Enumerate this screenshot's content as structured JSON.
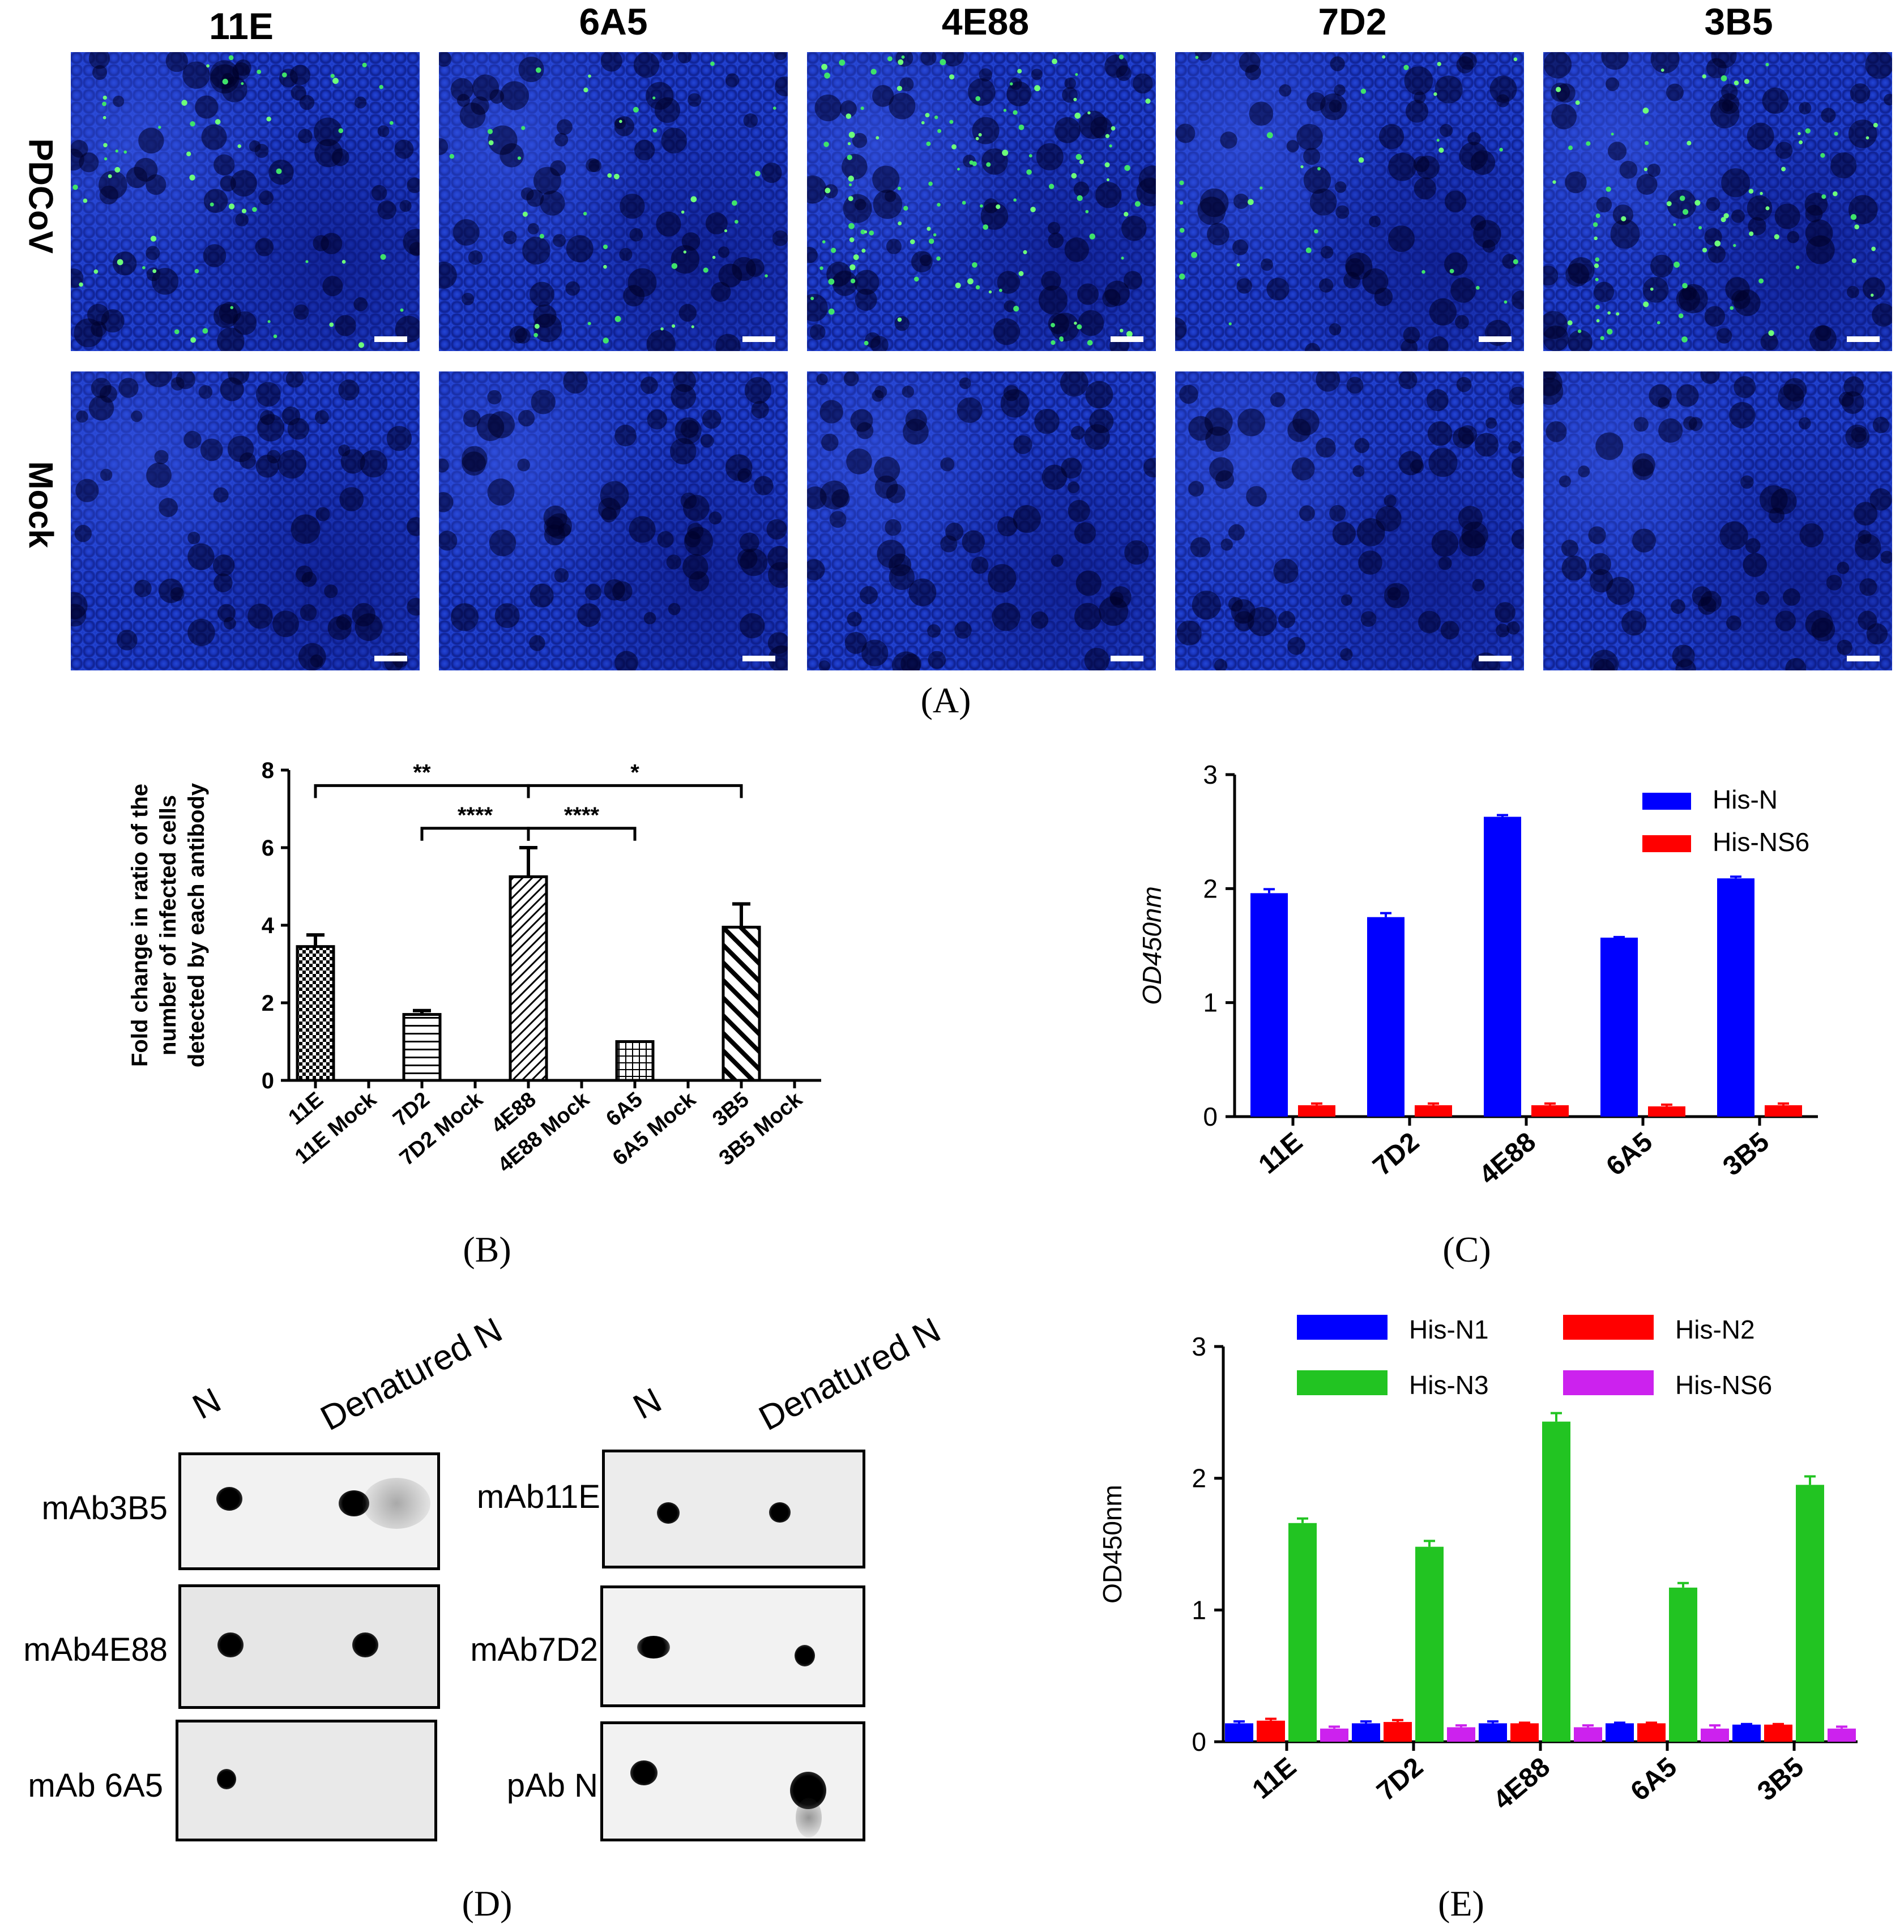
{
  "panel_a": {
    "columns": [
      "11E",
      "6A5",
      "4E88",
      "7D2",
      "3B5"
    ],
    "rows": [
      "PDCoV",
      "Mock"
    ],
    "panel_label": "(A)"
  },
  "panel_labels": {
    "b": "(B)",
    "c": "(C)",
    "d": "(D)",
    "e": "(E)"
  },
  "panel_d": {
    "headers": [
      "N",
      "Denatured N"
    ],
    "left_labels": [
      "mAb3B5",
      "mAb4E88",
      "mAb 6A5"
    ],
    "right_labels": [
      "mAb11E",
      "mAb7D2",
      "pAb N"
    ]
  },
  "chart_data": [
    {
      "id": "B",
      "type": "bar",
      "ylabel": "Fold change in ratio of the number of infected cells detected by each antibody",
      "ylabel_lines": [
        "Fold change in ratio of the",
        "number of infected cells",
        "detected by each antibody"
      ],
      "categories": [
        "11E",
        "11E Mock",
        "7D2",
        "7D2 Mock",
        "4E88",
        "4E88 Mock",
        "6A5",
        "6A5 Mock",
        "3B5",
        "3B5 Mock"
      ],
      "values": [
        3.45,
        0,
        1.7,
        0,
        5.25,
        0,
        1.0,
        0,
        3.95,
        0
      ],
      "errors": [
        0.3,
        0,
        0.1,
        0,
        0.75,
        0,
        0,
        0,
        0.6,
        0
      ],
      "patterns": [
        "checker",
        "none",
        "hlines",
        "none",
        "diag",
        "none",
        "grid",
        "none",
        "diagthick",
        "none"
      ],
      "ylim": [
        0,
        8
      ],
      "yticks": [
        0,
        2,
        4,
        6,
        8
      ],
      "significance": [
        {
          "from": "11E",
          "to": "4E88",
          "label": "**",
          "level": 7.6
        },
        {
          "from": "4E88",
          "to": "3B5",
          "label": "*",
          "level": 7.6
        },
        {
          "from": "7D2",
          "to": "4E88",
          "label": "****",
          "level": 6.5
        },
        {
          "from": "4E88",
          "to": "6A5",
          "label": "****",
          "level": 6.5
        }
      ]
    },
    {
      "id": "C",
      "type": "bar",
      "ylabel": "OD450nm",
      "categories": [
        "11E",
        "7D2",
        "4E88",
        "6A5",
        "3B5"
      ],
      "series": [
        {
          "name": "His-N",
          "color": "#0000ff",
          "values": [
            1.96,
            1.75,
            2.63,
            1.57,
            2.09
          ],
          "errors": [
            0.03,
            0.03,
            0.01,
            0.0,
            0.01
          ]
        },
        {
          "name": "His-NS6",
          "color": "#ff0000",
          "values": [
            0.1,
            0.1,
            0.1,
            0.09,
            0.1
          ],
          "errors": [
            0.01,
            0.01,
            0.01,
            0.01,
            0.01
          ]
        }
      ],
      "ylim": [
        0,
        3
      ],
      "yticks": [
        0,
        1,
        2,
        3
      ],
      "legend": "top-right"
    },
    {
      "id": "E",
      "type": "bar",
      "ylabel": "OD450nm",
      "categories": [
        "11E",
        "7D2",
        "4E88",
        "6A5",
        "3B5"
      ],
      "series": [
        {
          "name": "His-N1",
          "color": "#0000ff",
          "values": [
            0.14,
            0.14,
            0.14,
            0.14,
            0.13
          ],
          "errors": [
            0.01,
            0.01,
            0.01,
            0.0,
            0.0
          ]
        },
        {
          "name": "His-N2",
          "color": "#ff0000",
          "values": [
            0.16,
            0.15,
            0.14,
            0.14,
            0.13
          ],
          "errors": [
            0.01,
            0.01,
            0.0,
            0.0,
            0.0
          ]
        },
        {
          "name": "His-N3",
          "color": "#22c422",
          "values": [
            1.66,
            1.48,
            2.43,
            1.17,
            1.95
          ],
          "errors": [
            0.03,
            0.04,
            0.06,
            0.03,
            0.06
          ]
        },
        {
          "name": "His-NS6",
          "color": "#cc22ee",
          "values": [
            0.1,
            0.11,
            0.11,
            0.1,
            0.1
          ],
          "errors": [
            0.01,
            0.01,
            0.01,
            0.02,
            0.01
          ]
        }
      ],
      "ylim": [
        0,
        3
      ],
      "yticks": [
        0,
        1,
        2,
        3
      ],
      "legend": "top"
    }
  ]
}
